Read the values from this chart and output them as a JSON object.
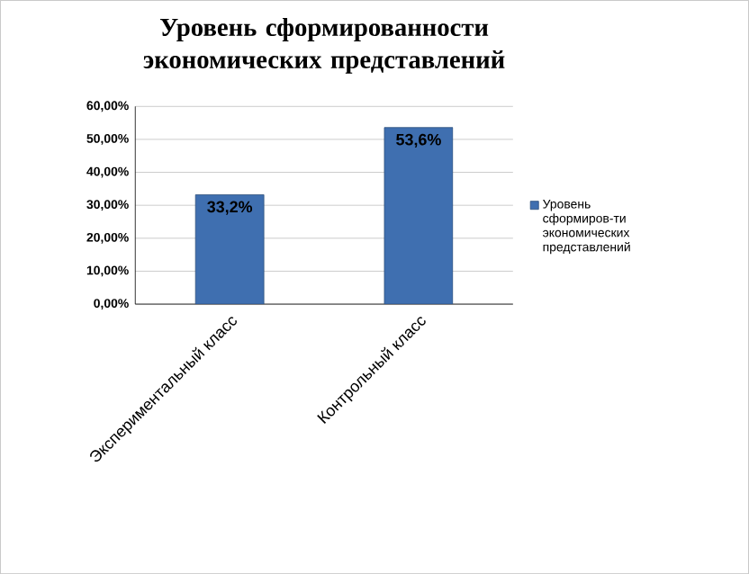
{
  "chart_data": {
    "type": "bar",
    "title": "Уровень сформированности экономических представлений",
    "categories": [
      "Экспериментальный класс",
      "Контрольный класс"
    ],
    "series": [
      {
        "name": "Уровень сформиров-ти экономических представлений",
        "color": "#3f6fb0",
        "values": [
          33.2,
          53.6
        ],
        "value_labels": [
          "33,2%",
          "53,6%"
        ]
      }
    ],
    "ylim": [
      0,
      60
    ],
    "yticks": [
      {
        "value": 0,
        "label": "0,00%"
      },
      {
        "value": 10,
        "label": "10,00%"
      },
      {
        "value": 20,
        "label": "20,00%"
      },
      {
        "value": 30,
        "label": "30,00%"
      },
      {
        "value": 40,
        "label": "40,00%"
      },
      {
        "value": 50,
        "label": "50,00%"
      },
      {
        "value": 60,
        "label": "60,00%"
      }
    ],
    "grid": "y",
    "legend": "right"
  }
}
